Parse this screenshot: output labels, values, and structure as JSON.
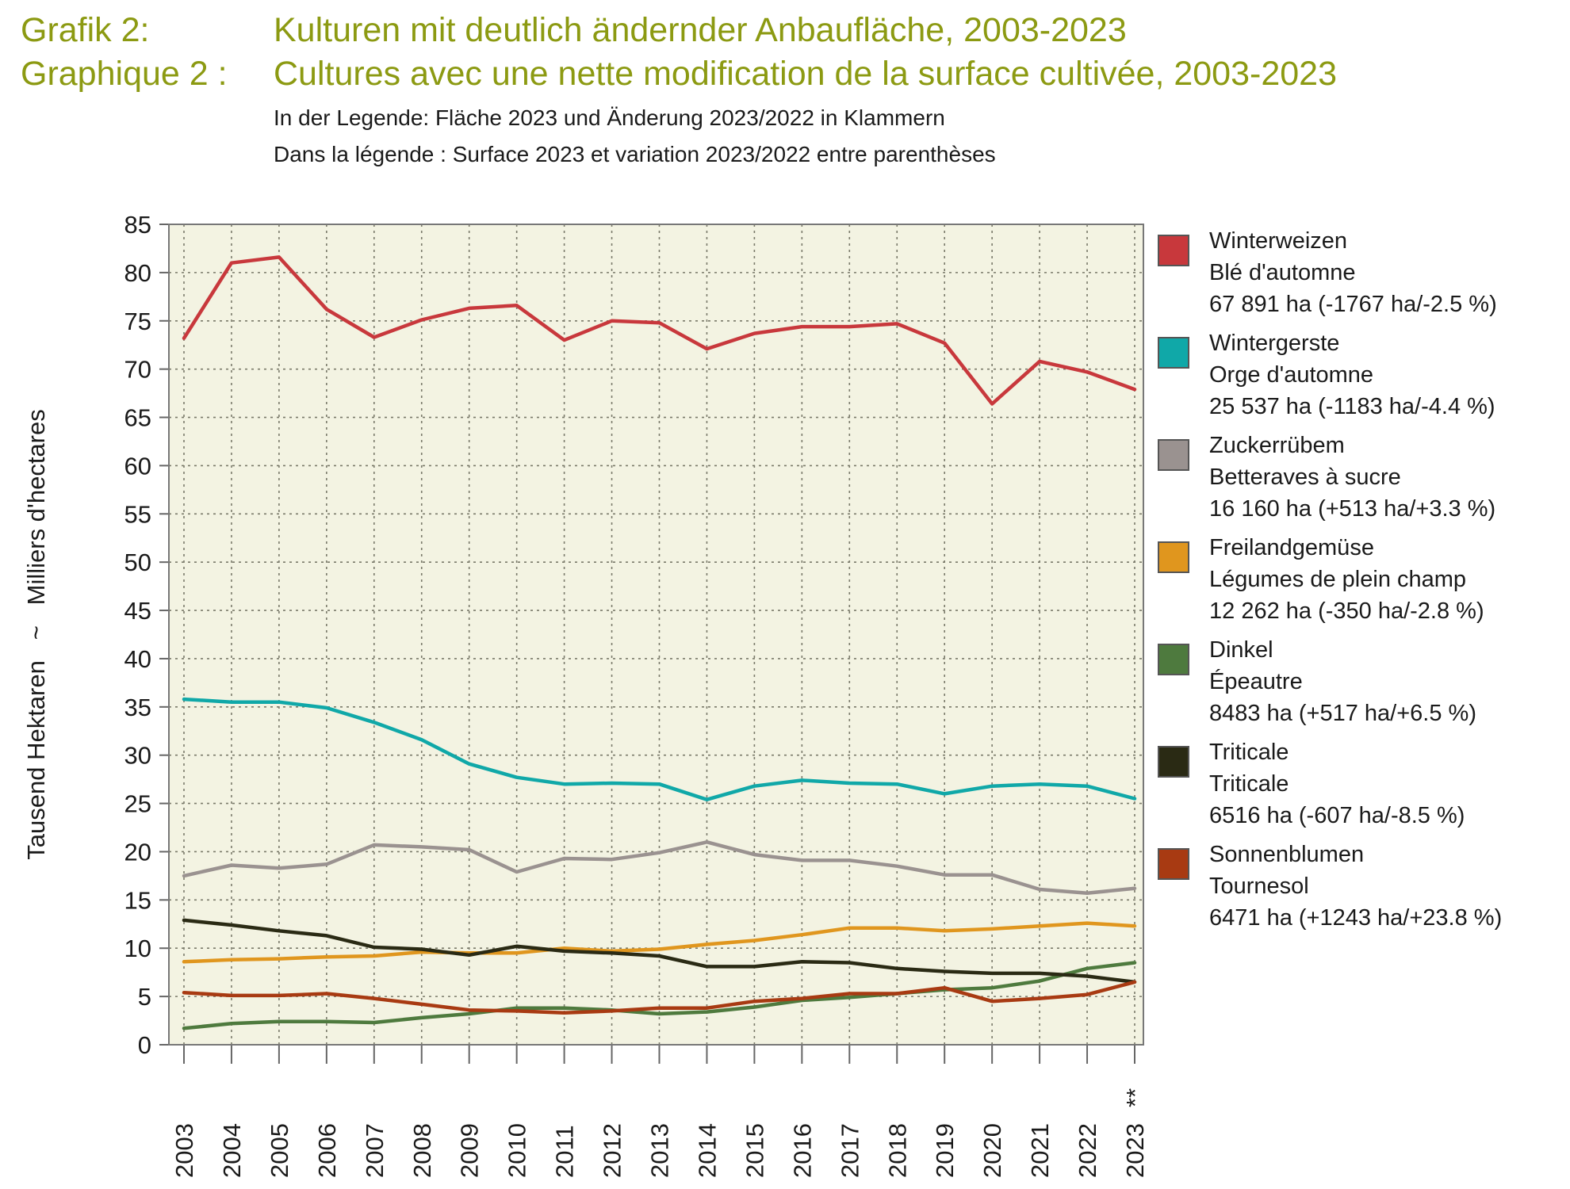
{
  "header": {
    "line1_prefix": "Grafik 2:",
    "line1_title": "Kulturen mit deutlich ändernder Anbaufläche, 2003-2023",
    "line2_prefix": "Graphique 2 :",
    "line2_title": "Cultures avec une nette modification de la surface cultivée, 2003-2023",
    "note_de": "In der Legende: Fläche 2023 und Änderung 2023/2022 in Klammern",
    "note_fr": "Dans la légende : Surface 2023 et variation 2023/2022 entre parenthèses"
  },
  "chart_data": {
    "type": "line",
    "ylabel": "Tausend Hektaren   ~   Milliers d'hectares",
    "ylim": [
      0,
      85
    ],
    "yticks": [
      0,
      5,
      10,
      15,
      20,
      25,
      30,
      35,
      40,
      45,
      50,
      55,
      60,
      65,
      70,
      75,
      80,
      85
    ],
    "x": [
      "2003",
      "2004",
      "2005",
      "2006",
      "2007",
      "2008",
      "2009",
      "2010",
      "2011",
      "2012",
      "2013",
      "2014",
      "2015",
      "2016",
      "2017",
      "2018",
      "2019",
      "2020",
      "2021",
      "2022",
      "2023"
    ],
    "x_annotation": {
      "category": "2023",
      "text": "**"
    },
    "grid": true,
    "legend_position": "right",
    "background": "#f3f3e2",
    "series": [
      {
        "name": "Winterweizen",
        "name_fr": "Blé d'automne",
        "detail": "67 891 ha (-1767 ha/-2.5 %)",
        "color": "#c8383c",
        "values": [
          73.2,
          81.0,
          81.6,
          76.2,
          73.3,
          75.1,
          76.3,
          76.6,
          73.0,
          75.0,
          74.8,
          72.1,
          73.7,
          74.4,
          74.4,
          74.7,
          72.7,
          66.4,
          70.8,
          69.7,
          67.9
        ]
      },
      {
        "name": "Wintergerste",
        "name_fr": "Orge d'automne",
        "detail": "25 537 ha (-1183 ha/-4.4 %)",
        "color": "#10a8a8",
        "values": [
          35.8,
          35.5,
          35.5,
          34.9,
          33.4,
          31.6,
          29.1,
          27.7,
          27.0,
          27.1,
          27.0,
          25.4,
          26.8,
          27.4,
          27.1,
          27.0,
          26.0,
          26.8,
          27.0,
          26.8,
          25.5
        ]
      },
      {
        "name": "Zuckerrübem",
        "name_fr": "Betteraves à sucre",
        "detail": "16 160 ha (+513 ha/+3.3 %)",
        "color": "#9a9290",
        "values": [
          17.5,
          18.6,
          18.3,
          18.7,
          20.7,
          20.5,
          20.2,
          17.9,
          19.3,
          19.2,
          19.9,
          21.0,
          19.7,
          19.1,
          19.1,
          18.5,
          17.6,
          17.6,
          16.1,
          15.7,
          16.2
        ]
      },
      {
        "name": "Freilandgemüse",
        "name_fr": "Légumes de plein champ",
        "detail": "12 262 ha (-350 ha/-2.8 %)",
        "color": "#e0961e",
        "values": [
          8.6,
          8.8,
          8.9,
          9.1,
          9.2,
          9.6,
          9.5,
          9.5,
          10.0,
          9.7,
          9.9,
          10.4,
          10.8,
          11.4,
          12.1,
          12.1,
          11.8,
          12.0,
          12.3,
          12.6,
          12.3
        ]
      },
      {
        "name": "Dinkel",
        "name_fr": "Épeautre",
        "detail": "8483 ha (+517 ha/+6.5 %)",
        "color": "#4e7a3e",
        "values": [
          1.7,
          2.2,
          2.4,
          2.4,
          2.3,
          2.8,
          3.2,
          3.8,
          3.8,
          3.6,
          3.2,
          3.4,
          3.9,
          4.6,
          4.9,
          5.3,
          5.7,
          5.9,
          6.6,
          7.9,
          8.5
        ]
      },
      {
        "name": "Triticale",
        "name_fr": "Triticale",
        "detail": "6516 ha (-607 ha/-8.5 %)",
        "color": "#2a2a14",
        "values": [
          12.9,
          12.4,
          11.8,
          11.3,
          10.1,
          9.9,
          9.3,
          10.2,
          9.7,
          9.5,
          9.2,
          8.1,
          8.1,
          8.6,
          8.5,
          7.9,
          7.6,
          7.4,
          7.4,
          7.1,
          6.5
        ]
      },
      {
        "name": "Sonnenblumen",
        "name_fr": "Tournesol",
        "detail": "6471 ha (+1243 ha/+23.8 %)",
        "color": "#a83a12",
        "values": [
          5.4,
          5.1,
          5.1,
          5.3,
          4.8,
          4.2,
          3.6,
          3.5,
          3.3,
          3.5,
          3.8,
          3.8,
          4.5,
          4.8,
          5.3,
          5.3,
          5.9,
          4.5,
          4.8,
          5.2,
          6.5
        ]
      }
    ]
  }
}
